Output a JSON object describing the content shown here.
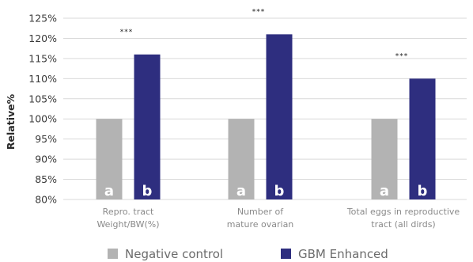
{
  "chart_data": {
    "type": "bar",
    "ylabel": "Relative%",
    "ylim": [
      80,
      125
    ],
    "yticks": [
      "80%",
      "85%",
      "90%",
      "95%",
      "100%",
      "105%",
      "110%",
      "115%",
      "120%",
      "125%"
    ],
    "grid": true,
    "legend_position": "bottom",
    "categories": [
      [
        "Repro. tract",
        "Weight/BW(%)"
      ],
      [
        "Number of",
        "mature ovarian"
      ],
      [
        "Total eggs in reproductive",
        "tract (all dirds)"
      ]
    ],
    "series": [
      {
        "name": "Negative control",
        "values": [
          100,
          100,
          100
        ],
        "color": "#b3b3b3",
        "labels": [
          "a",
          "a",
          "a"
        ]
      },
      {
        "name": "GBM Enhanced",
        "values": [
          116,
          121,
          110
        ],
        "color": "#2e2e7f",
        "labels": [
          "b",
          "b",
          "b"
        ]
      }
    ],
    "annotations": [
      "***",
      "***",
      "***"
    ]
  }
}
